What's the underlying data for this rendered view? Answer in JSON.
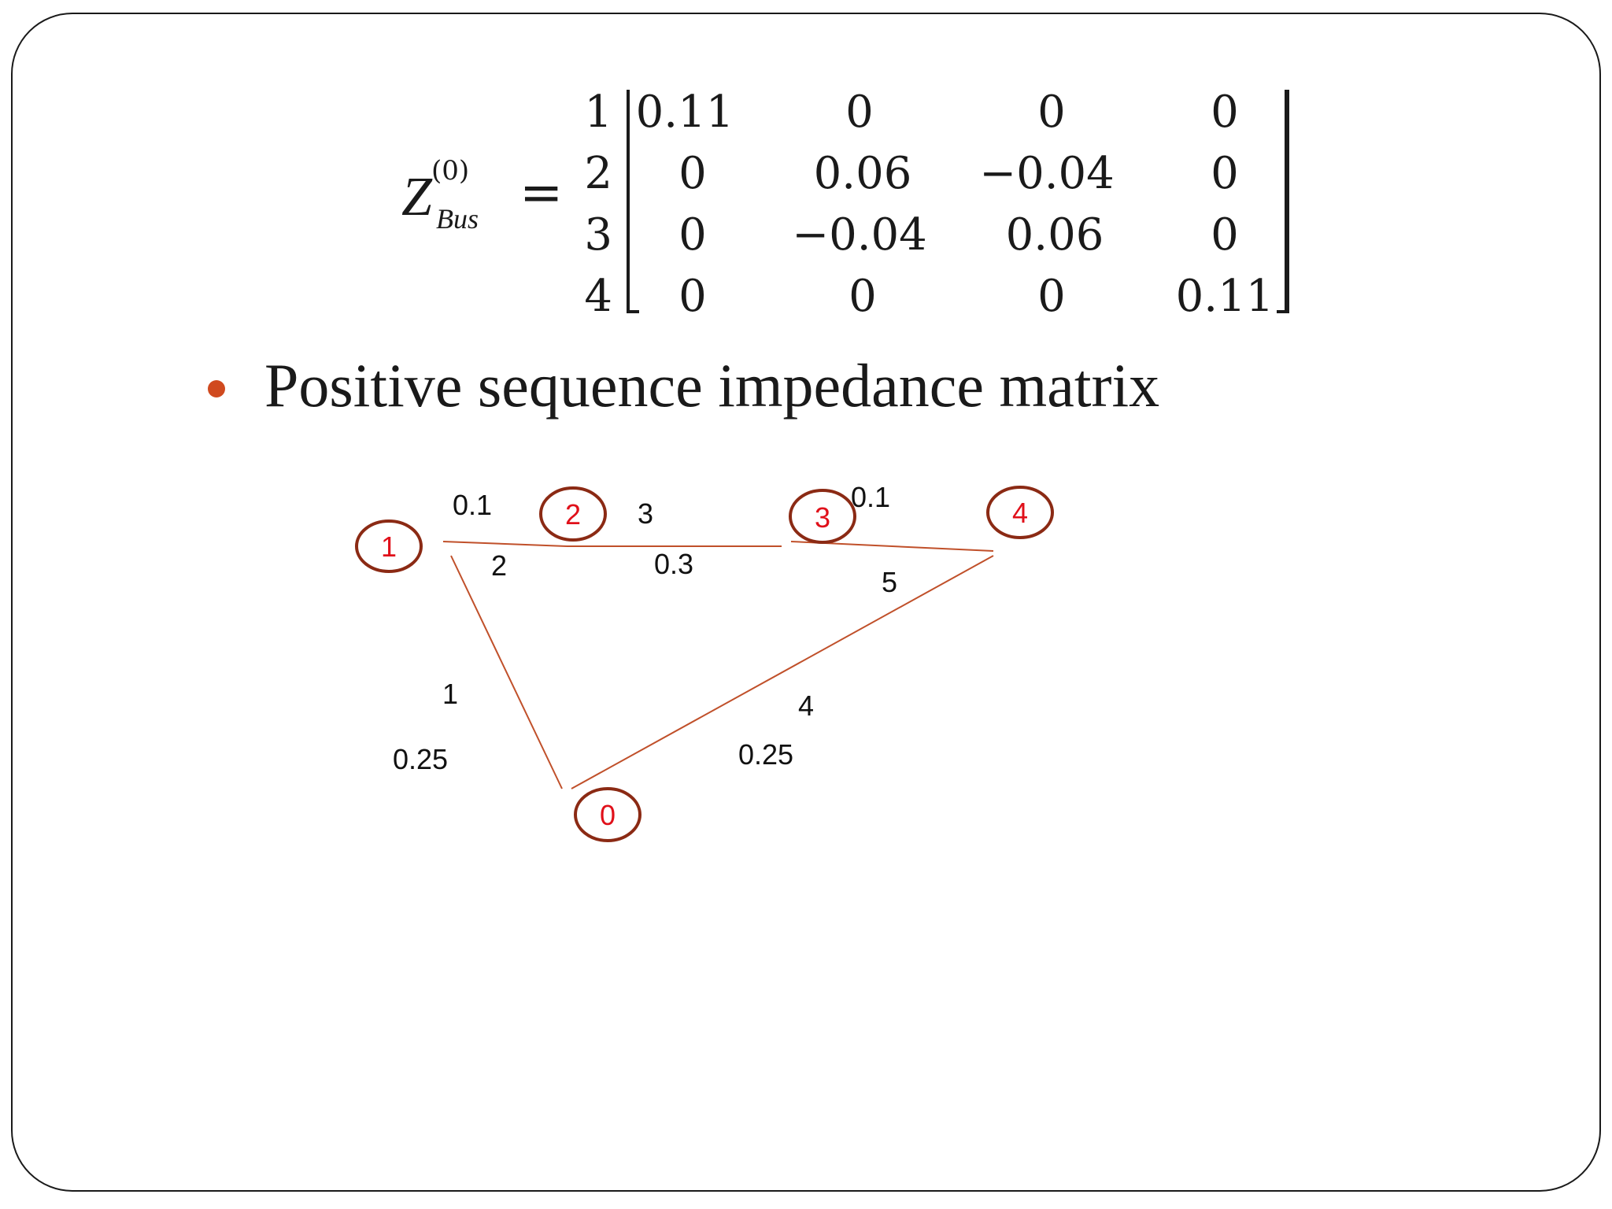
{
  "equation": {
    "symbol": "Z",
    "superscript": "(0)",
    "subscript": "Bus",
    "equals": "=",
    "row_labels": [
      "1",
      "2",
      "3",
      "4"
    ],
    "rows": [
      [
        "0.11",
        "0",
        "0",
        "0"
      ],
      [
        "0",
        "0.06",
        "−0.04",
        "0"
      ],
      [
        "0",
        "−0.04",
        "0.06",
        "0"
      ],
      [
        "0",
        "0",
        "0",
        "0.11"
      ]
    ]
  },
  "bullet": {
    "text": "Positive sequence impedance matrix",
    "bullet_color": "#d04a1f"
  },
  "diagram": {
    "line_color": "#c0502a",
    "bus_ring_color": "#8b2a14",
    "bus_text_color": "#e0101a",
    "buses": [
      "1",
      "2",
      "3",
      "4",
      "0"
    ],
    "branches": [
      {
        "number": "1",
        "from": "1",
        "to": "0",
        "impedance": "0.25"
      },
      {
        "number": "2",
        "from": "1",
        "to": "2",
        "impedance": "0.1"
      },
      {
        "number": "3",
        "from": "2",
        "to": "3",
        "impedance": "0.3"
      },
      {
        "number": "4",
        "from": "4",
        "to": "0",
        "impedance": "0.25"
      },
      {
        "number": "5",
        "from": "3",
        "to": "4",
        "impedance": "0.1"
      }
    ]
  }
}
